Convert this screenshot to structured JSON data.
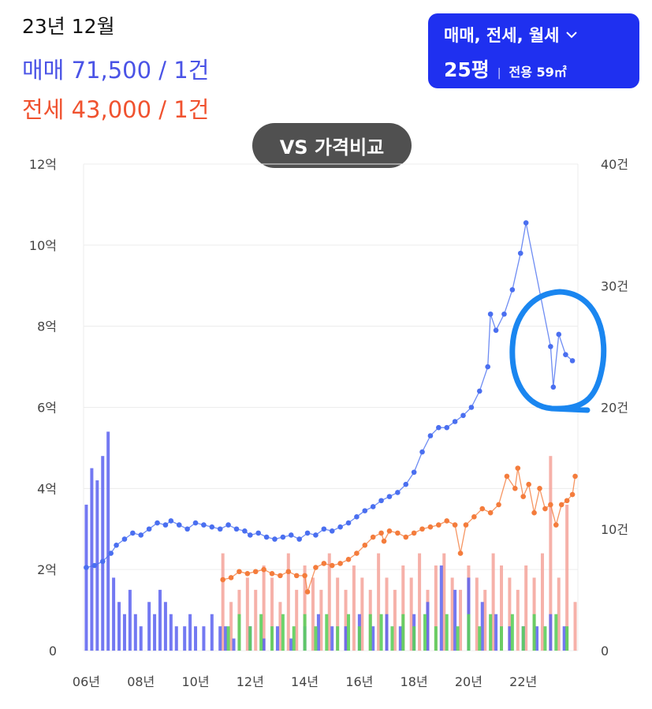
{
  "header": {
    "period": "23년 12월",
    "sale": "매매 71,500 / 1건",
    "lease": "전세 43,000 / 1건"
  },
  "filter": {
    "trade_types": "매매, 전세, 월세",
    "size": "25평",
    "area": "전용 59㎡"
  },
  "vs_button": "VS 가격비교",
  "colors": {
    "sale": "#4a6ff0",
    "lease": "#f47c3c",
    "vol_sale": "#5b61f0",
    "vol_lease": "#f5a39a",
    "vol_rent": "#5ccf5c",
    "highlight": "#1a86f0"
  },
  "chart_data": {
    "type": "line",
    "x_tick_labels": [
      "06년",
      "08년",
      "10년",
      "12년",
      "14년",
      "16년",
      "18년",
      "20년",
      "22년"
    ],
    "x_ticks": [
      2006,
      2008,
      2010,
      2012,
      2014,
      2016,
      2018,
      2020,
      2022
    ],
    "xlim": [
      2005.9,
      2024.0
    ],
    "y_left": {
      "unit": "억",
      "ylim": [
        0,
        12
      ],
      "tick_labels": [
        "0",
        "2억",
        "4억",
        "6억",
        "8억",
        "10억",
        "12억"
      ],
      "ticks": [
        0,
        2,
        4,
        6,
        8,
        10,
        12
      ]
    },
    "y_right": {
      "unit": "건",
      "ylim": [
        0,
        40
      ],
      "tick_labels": [
        "0",
        "10건",
        "20건",
        "30건",
        "40건"
      ],
      "ticks": [
        0,
        10,
        20,
        30,
        40
      ]
    },
    "grid": true,
    "series": [
      {
        "key": "sale",
        "points": [
          [
            2006.0,
            2.05
          ],
          [
            2006.3,
            2.1
          ],
          [
            2006.6,
            2.2
          ],
          [
            2006.9,
            2.4
          ],
          [
            2007.1,
            2.6
          ],
          [
            2007.4,
            2.75
          ],
          [
            2007.7,
            2.9
          ],
          [
            2008.0,
            2.85
          ],
          [
            2008.3,
            3.0
          ],
          [
            2008.6,
            3.15
          ],
          [
            2008.9,
            3.1
          ],
          [
            2009.1,
            3.2
          ],
          [
            2009.4,
            3.1
          ],
          [
            2009.7,
            3.0
          ],
          [
            2010.0,
            3.15
          ],
          [
            2010.3,
            3.1
          ],
          [
            2010.6,
            3.05
          ],
          [
            2010.9,
            3.0
          ],
          [
            2011.2,
            3.1
          ],
          [
            2011.5,
            3.0
          ],
          [
            2011.8,
            2.95
          ],
          [
            2012.0,
            2.85
          ],
          [
            2012.3,
            2.9
          ],
          [
            2012.6,
            2.8
          ],
          [
            2012.9,
            2.75
          ],
          [
            2013.2,
            2.8
          ],
          [
            2013.5,
            2.85
          ],
          [
            2013.8,
            2.75
          ],
          [
            2014.1,
            2.9
          ],
          [
            2014.4,
            2.85
          ],
          [
            2014.7,
            3.0
          ],
          [
            2015.0,
            2.95
          ],
          [
            2015.3,
            3.05
          ],
          [
            2015.6,
            3.15
          ],
          [
            2015.9,
            3.3
          ],
          [
            2016.2,
            3.45
          ],
          [
            2016.5,
            3.55
          ],
          [
            2016.8,
            3.7
          ],
          [
            2017.1,
            3.8
          ],
          [
            2017.4,
            3.9
          ],
          [
            2017.7,
            4.1
          ],
          [
            2018.0,
            4.4
          ],
          [
            2018.3,
            4.9
          ],
          [
            2018.6,
            5.3
          ],
          [
            2018.9,
            5.5
          ],
          [
            2019.2,
            5.5
          ],
          [
            2019.5,
            5.65
          ],
          [
            2019.8,
            5.8
          ],
          [
            2020.1,
            6.0
          ],
          [
            2020.4,
            6.4
          ],
          [
            2020.7,
            7.0
          ],
          [
            2020.8,
            8.3
          ],
          [
            2021.0,
            7.9
          ],
          [
            2021.3,
            8.3
          ],
          [
            2021.6,
            8.9
          ],
          [
            2021.9,
            9.8
          ],
          [
            2022.1,
            10.55
          ],
          [
            2023.0,
            7.5
          ],
          [
            2023.1,
            6.5
          ],
          [
            2023.3,
            7.8
          ],
          [
            2023.55,
            7.3
          ],
          [
            2023.8,
            7.15
          ]
        ]
      },
      {
        "key": "lease",
        "points": [
          [
            2011.0,
            1.75
          ],
          [
            2011.3,
            1.8
          ],
          [
            2011.6,
            1.95
          ],
          [
            2011.9,
            1.9
          ],
          [
            2012.2,
            1.95
          ],
          [
            2012.5,
            2.0
          ],
          [
            2012.8,
            1.9
          ],
          [
            2013.1,
            1.85
          ],
          [
            2013.4,
            1.95
          ],
          [
            2013.7,
            1.85
          ],
          [
            2014.0,
            1.85
          ],
          [
            2014.1,
            1.45
          ],
          [
            2014.4,
            2.05
          ],
          [
            2014.7,
            2.15
          ],
          [
            2015.0,
            2.1
          ],
          [
            2015.3,
            2.15
          ],
          [
            2015.6,
            2.25
          ],
          [
            2015.9,
            2.4
          ],
          [
            2016.2,
            2.6
          ],
          [
            2016.5,
            2.8
          ],
          [
            2016.8,
            2.9
          ],
          [
            2016.9,
            2.7
          ],
          [
            2017.1,
            2.95
          ],
          [
            2017.4,
            2.9
          ],
          [
            2017.7,
            2.8
          ],
          [
            2018.0,
            2.9
          ],
          [
            2018.3,
            3.0
          ],
          [
            2018.6,
            3.05
          ],
          [
            2018.9,
            3.1
          ],
          [
            2019.2,
            3.2
          ],
          [
            2019.5,
            3.1
          ],
          [
            2019.7,
            2.4
          ],
          [
            2019.9,
            3.1
          ],
          [
            2020.2,
            3.3
          ],
          [
            2020.5,
            3.5
          ],
          [
            2020.8,
            3.4
          ],
          [
            2021.1,
            3.6
          ],
          [
            2021.4,
            4.3
          ],
          [
            2021.7,
            4.0
          ],
          [
            2021.8,
            4.5
          ],
          [
            2022.0,
            3.8
          ],
          [
            2022.2,
            4.1
          ],
          [
            2022.4,
            3.4
          ],
          [
            2022.6,
            4.0
          ],
          [
            2022.8,
            3.5
          ],
          [
            2023.0,
            3.6
          ],
          [
            2023.2,
            3.1
          ],
          [
            2023.4,
            3.6
          ],
          [
            2023.6,
            3.7
          ],
          [
            2023.8,
            3.85
          ],
          [
            2023.9,
            4.3
          ]
        ]
      }
    ],
    "volume": {
      "sale": [
        [
          2006.0,
          12
        ],
        [
          2006.2,
          15
        ],
        [
          2006.4,
          14
        ],
        [
          2006.6,
          16
        ],
        [
          2006.8,
          18
        ],
        [
          2007.0,
          6
        ],
        [
          2007.2,
          4
        ],
        [
          2007.4,
          3
        ],
        [
          2007.6,
          5
        ],
        [
          2007.8,
          3
        ],
        [
          2008.0,
          2
        ],
        [
          2008.3,
          4
        ],
        [
          2008.5,
          3
        ],
        [
          2008.7,
          5
        ],
        [
          2008.9,
          4
        ],
        [
          2009.1,
          3
        ],
        [
          2009.3,
          2
        ],
        [
          2009.6,
          2
        ],
        [
          2009.8,
          3
        ],
        [
          2010.0,
          2
        ],
        [
          2010.3,
          2
        ],
        [
          2010.6,
          3
        ],
        [
          2010.9,
          2
        ],
        [
          2011.1,
          2
        ],
        [
          2011.4,
          1
        ],
        [
          2012.0,
          2
        ],
        [
          2012.5,
          1
        ],
        [
          2013.0,
          2
        ],
        [
          2013.5,
          1
        ],
        [
          2014.0,
          2
        ],
        [
          2014.5,
          3
        ],
        [
          2015.0,
          2
        ],
        [
          2015.5,
          2
        ],
        [
          2016.0,
          3
        ],
        [
          2016.5,
          2
        ],
        [
          2017.0,
          3
        ],
        [
          2017.5,
          2
        ],
        [
          2018.0,
          3
        ],
        [
          2018.5,
          4
        ],
        [
          2019.0,
          7
        ],
        [
          2019.5,
          5
        ],
        [
          2020.0,
          6
        ],
        [
          2020.5,
          4
        ],
        [
          2021.0,
          3
        ],
        [
          2021.5,
          2
        ],
        [
          2022.0,
          2
        ],
        [
          2022.5,
          2
        ],
        [
          2023.0,
          3
        ],
        [
          2023.5,
          2
        ]
      ],
      "lease": [
        [
          2011.0,
          8
        ],
        [
          2011.3,
          4
        ],
        [
          2011.6,
          5
        ],
        [
          2011.9,
          6
        ],
        [
          2012.2,
          5
        ],
        [
          2012.5,
          7
        ],
        [
          2012.8,
          6
        ],
        [
          2013.1,
          4
        ],
        [
          2013.4,
          8
        ],
        [
          2013.7,
          5
        ],
        [
          2014.0,
          7
        ],
        [
          2014.3,
          6
        ],
        [
          2014.6,
          5
        ],
        [
          2014.9,
          8
        ],
        [
          2015.2,
          6
        ],
        [
          2015.5,
          5
        ],
        [
          2015.8,
          7
        ],
        [
          2016.1,
          6
        ],
        [
          2016.4,
          5
        ],
        [
          2016.7,
          8
        ],
        [
          2017.0,
          6
        ],
        [
          2017.3,
          5
        ],
        [
          2017.6,
          7
        ],
        [
          2017.9,
          6
        ],
        [
          2018.2,
          8
        ],
        [
          2018.5,
          5
        ],
        [
          2018.8,
          7
        ],
        [
          2019.1,
          8
        ],
        [
          2019.4,
          6
        ],
        [
          2019.7,
          5
        ],
        [
          2020.0,
          7
        ],
        [
          2020.3,
          6
        ],
        [
          2020.6,
          5
        ],
        [
          2020.9,
          8
        ],
        [
          2021.2,
          7
        ],
        [
          2021.5,
          6
        ],
        [
          2021.8,
          5
        ],
        [
          2022.1,
          7
        ],
        [
          2022.4,
          6
        ],
        [
          2022.7,
          8
        ],
        [
          2023.0,
          16
        ],
        [
          2023.3,
          6
        ],
        [
          2023.6,
          12
        ],
        [
          2023.9,
          4
        ]
      ],
      "rent": [
        [
          2011.2,
          2
        ],
        [
          2011.6,
          3
        ],
        [
          2012.0,
          2
        ],
        [
          2012.4,
          3
        ],
        [
          2012.8,
          2
        ],
        [
          2013.2,
          3
        ],
        [
          2013.6,
          2
        ],
        [
          2014.0,
          3
        ],
        [
          2014.4,
          2
        ],
        [
          2014.8,
          3
        ],
        [
          2015.2,
          2
        ],
        [
          2015.6,
          3
        ],
        [
          2016.0,
          2
        ],
        [
          2016.4,
          3
        ],
        [
          2016.8,
          3
        ],
        [
          2017.2,
          2
        ],
        [
          2017.6,
          3
        ],
        [
          2018.0,
          2
        ],
        [
          2018.4,
          3
        ],
        [
          2018.8,
          2
        ],
        [
          2019.2,
          3
        ],
        [
          2019.6,
          2
        ],
        [
          2020.0,
          3
        ],
        [
          2020.4,
          2
        ],
        [
          2020.8,
          3
        ],
        [
          2021.2,
          2
        ],
        [
          2021.6,
          3
        ],
        [
          2022.0,
          2
        ],
        [
          2022.4,
          3
        ],
        [
          2022.8,
          2
        ],
        [
          2023.2,
          3
        ],
        [
          2023.6,
          2
        ]
      ]
    }
  }
}
